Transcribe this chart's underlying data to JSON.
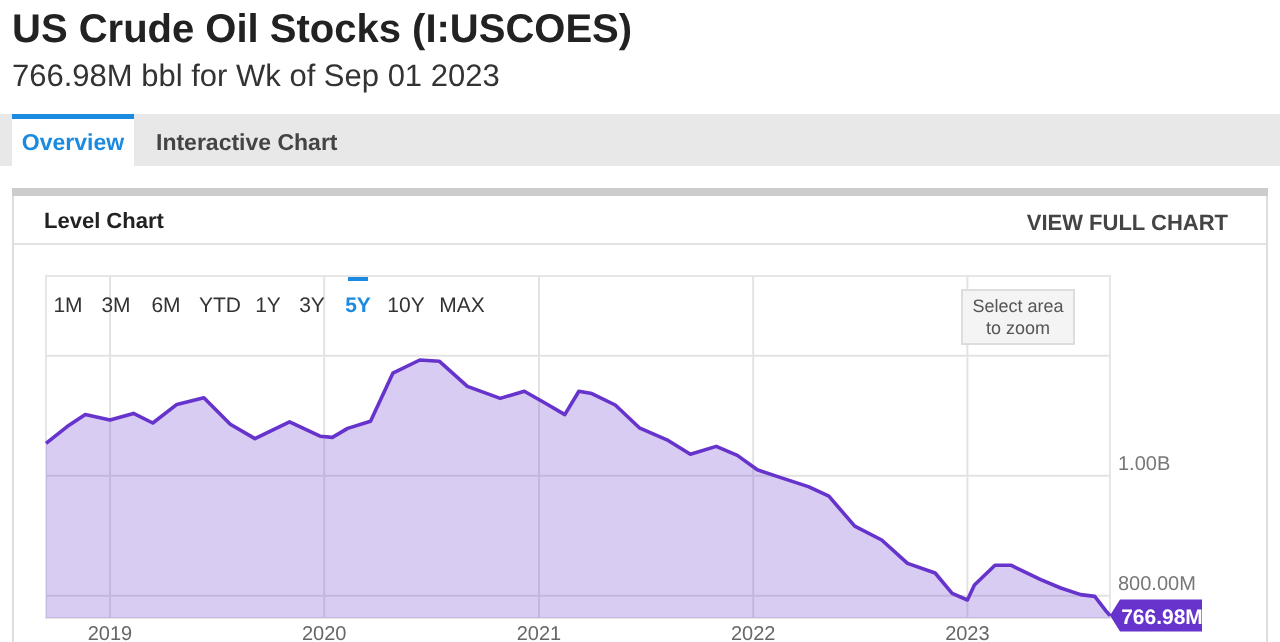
{
  "chart_data": {
    "type": "area",
    "title": "US Crude Oil Stocks (I:USCOES)",
    "subtitle": "766.98M bbl for Wk of Sep 01 2023",
    "x": [
      "2018-09-14",
      "2018-10-20",
      "2018-11-20",
      "2019-01-01",
      "2019-02-10",
      "2019-03-15",
      "2019-04-25",
      "2019-06-10",
      "2019-07-25",
      "2019-09-05",
      "2019-11-03",
      "2019-12-25",
      "2020-01-15",
      "2020-02-10",
      "2020-03-20",
      "2020-04-27",
      "2020-06-12",
      "2020-07-15",
      "2020-09-01",
      "2020-10-27",
      "2020-12-07",
      "2021-01-12",
      "2021-02-14",
      "2021-03-10",
      "2021-04-01",
      "2021-05-11",
      "2021-06-21",
      "2021-08-07",
      "2021-09-16",
      "2021-10-30",
      "2021-12-05",
      "2022-01-08",
      "2022-02-17",
      "2022-04-05",
      "2022-05-10",
      "2022-06-23",
      "2022-08-08",
      "2022-09-21",
      "2022-11-07",
      "2022-12-06",
      "2023-01-01",
      "2023-01-13",
      "2023-02-17",
      "2023-03-16",
      "2023-05-06",
      "2023-06-09",
      "2023-07-13",
      "2023-08-06",
      "2023-08-25",
      "2023-09-01"
    ],
    "series": [
      {
        "color": "#6633cc",
        "values": [
          1054000000,
          1082000000,
          1102000000,
          1093000000,
          1104000000,
          1088000000,
          1119000000,
          1130000000,
          1086000000,
          1062000000,
          1090000000,
          1066000000,
          1064000000,
          1079000000,
          1091000000,
          1171000000,
          1193000000,
          1191000000,
          1149000000,
          1129000000,
          1141000000,
          1121000000,
          1102000000,
          1141000000,
          1137000000,
          1118000000,
          1080000000,
          1060000000,
          1036000000,
          1049000000,
          1034000000,
          1010000000,
          997000000,
          982000000,
          966000000,
          916000000,
          893000000,
          854000000,
          838000000,
          804000000,
          793000000,
          818000000,
          851000000,
          851000000,
          827000000,
          813000000,
          802000000,
          799000000,
          775000000,
          766980000
        ]
      }
    ],
    "xlim": [
      "2018-09-14",
      "2023-09-01"
    ],
    "xticks": [
      "2019",
      "2020",
      "2021",
      "2022",
      "2023"
    ],
    "ylim": [
      763000000,
      1333000000
    ],
    "yticks": [
      {
        "value": 800000000,
        "label": "800.00M"
      },
      {
        "value": 1000000000,
        "label": "1.00B"
      },
      {
        "value": 1200000000,
        "label": null
      }
    ],
    "grid": true,
    "annotations": [
      "Overview",
      "Interactive Chart",
      "Level Chart",
      "VIEW FULL CHART",
      "1M",
      "3M",
      "6M",
      "YTD",
      "1Y",
      "3Y",
      "5Y",
      "10Y",
      "MAX",
      "Select area to zoom",
      {
        "text": "766.98M",
        "x": "2023-09-01",
        "y": 766980000
      }
    ]
  }
}
